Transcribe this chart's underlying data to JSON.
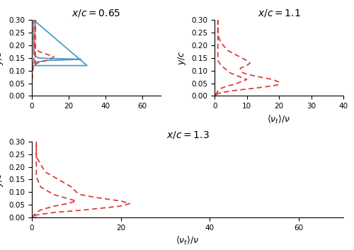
{
  "title_065": "$x/c = 0.65$",
  "title_11": "$x/c = 1.1$",
  "title_13": "$x/c = 1.3$",
  "xlabel": "$\\langle \\nu_t \\rangle/\\nu$",
  "ylabel": "$y/c$",
  "ylim": [
    0,
    0.3
  ],
  "xlim_065": [
    0,
    70
  ],
  "xlim_11": [
    0,
    40
  ],
  "xlim_13": [
    0,
    70
  ],
  "xticks_065": [
    0,
    20,
    40,
    60
  ],
  "xticks_11": [
    0,
    10,
    20,
    30,
    40
  ],
  "xticks_13": [
    0,
    20,
    40,
    60
  ],
  "yticks": [
    0,
    0.05,
    0.1,
    0.15,
    0.2,
    0.25,
    0.3
  ],
  "blue_color": "#4E9DC4",
  "red_color": "#D94040",
  "linewidth_blue": 1.3,
  "linewidth_red": 1.3
}
